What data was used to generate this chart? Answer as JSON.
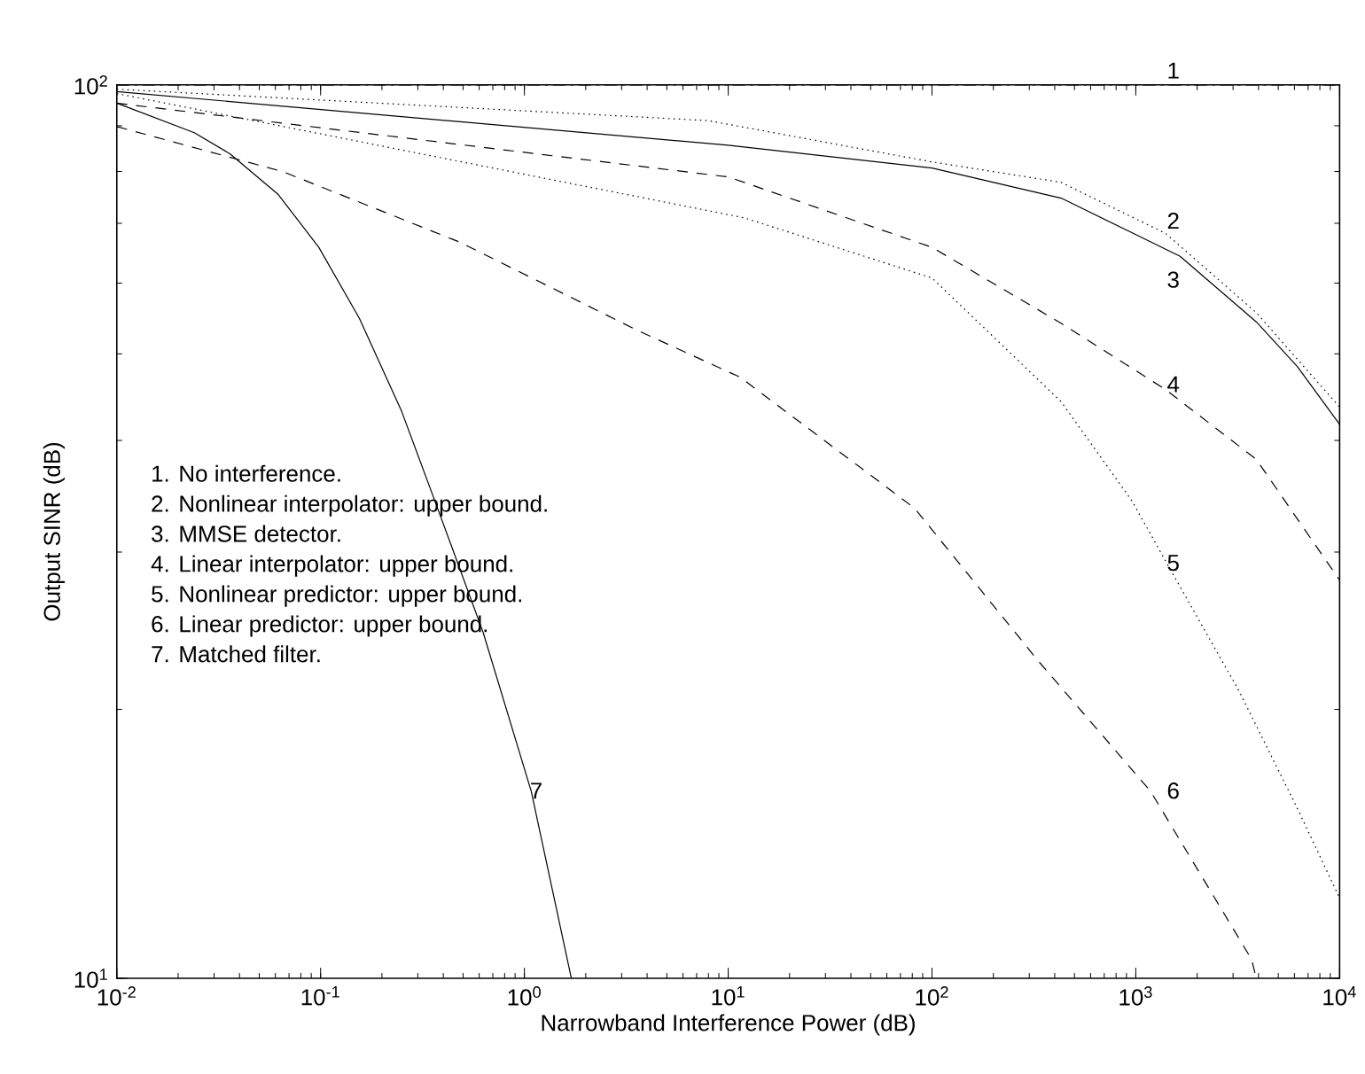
{
  "chart_data": {
    "type": "line",
    "xlabel": "Narrowband Interference Power (dB)",
    "ylabel": "Output SINR (dB)",
    "log": "xy",
    "xlim": [
      0.01,
      10000
    ],
    "ylim": [
      10,
      100
    ],
    "xticks": [
      {
        "value": 0.01,
        "label": "10$^{-2}$"
      },
      {
        "value": 0.1,
        "label": "10$^{-1}$"
      },
      {
        "value": 1,
        "label": "10$^{0}$"
      },
      {
        "value": 10,
        "label": "10$^{1}$"
      },
      {
        "value": 100,
        "label": "10$^{2}$"
      },
      {
        "value": 1000,
        "label": "10$^{3}$"
      },
      {
        "value": 10000,
        "label": "10$^{4}$"
      }
    ],
    "yticks": [
      {
        "value": 10,
        "label": "10$^{1}$"
      },
      {
        "value": 100,
        "label": "10$^{2}$"
      }
    ],
    "grid": false,
    "legend": false,
    "series": [
      {
        "name": "1",
        "color": "#000000",
        "line_style": "dashdot",
        "x": [
          0.01,
          10000
        ],
        "values": [
          100,
          100
        ]
      },
      {
        "name": "2",
        "color": "#000000",
        "line_style": "dotted",
        "x": [
          0.01,
          8,
          100,
          430,
          1400,
          3900,
          10000
        ],
        "values": [
          98.9,
          91.2,
          82,
          77.8,
          68.2,
          55.6,
          43.6
        ]
      },
      {
        "name": "3",
        "color": "#000000",
        "line_style": "solid",
        "x": [
          0.01,
          10,
          100,
          430,
          1650,
          3900,
          6200,
          10000
        ],
        "values": [
          98.3,
          85.6,
          80.7,
          74.7,
          64.3,
          54.3,
          48.4,
          41.7
        ]
      },
      {
        "name": "4",
        "color": "#000000",
        "line_style": "dashed",
        "x": [
          0.01,
          10,
          100,
          430,
          1400,
          3900,
          10000
        ],
        "values": [
          95.4,
          78.9,
          65.8,
          54.1,
          45.6,
          38.1,
          27.9
        ]
      },
      {
        "name": "5",
        "color": "#000000",
        "line_style": "dotted",
        "x": [
          0.01,
          12,
          100,
          430,
          960,
          1500,
          3200,
          6200,
          10000
        ],
        "values": [
          97.8,
          71.0,
          60.8,
          44.2,
          34.2,
          28.5,
          21.0,
          15.5,
          12.3
        ]
      },
      {
        "name": "6",
        "color": "#000000",
        "line_style": "dashed",
        "x": [
          0.01,
          0.065,
          0.48,
          3.6,
          11.4,
          82,
          330,
          1180,
          3700,
          3900
        ],
        "values": [
          89.8,
          80.0,
          66.7,
          53.1,
          47.1,
          33.6,
          22.7,
          16.2,
          10.5,
          10
        ]
      },
      {
        "name": "7",
        "color": "#000000",
        "line_style": "solid",
        "x": [
          0.01,
          0.024,
          0.036,
          0.062,
          0.098,
          0.155,
          0.25,
          0.373,
          0.627,
          1.08,
          1.7
        ],
        "values": [
          95.4,
          88.4,
          83.7,
          75.4,
          65.8,
          54.8,
          43.1,
          33.7,
          24.4,
          16.2,
          10
        ]
      }
    ],
    "annotations": [
      "1.  No interference.",
      "2.  Nonlinear interpolator: upper bound.",
      "3.  MMSE detector.",
      "4.  Linear interpolator: upper bound.",
      "5.  Nonlinear predictor: upper bound.",
      "6.  Linear predictor: upper bound.",
      "7.  Matched filter."
    ]
  }
}
